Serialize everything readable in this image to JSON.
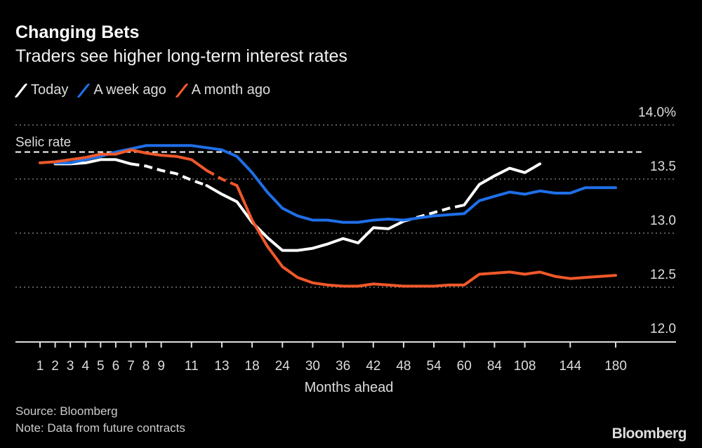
{
  "title": "Changing Bets",
  "subtitle": "Traders see higher long-term interest rates",
  "source": "Source: Bloomberg",
  "note": "Note: Data from future contracts",
  "logo": "Bloomberg",
  "colors": {
    "today": "#ffffff",
    "week": "#1f6fe8",
    "month": "#f0582a",
    "grid": "#777777"
  },
  "chart_data": {
    "type": "line",
    "title": "Changing Bets",
    "xlabel": "Months ahead",
    "ylabel": "",
    "y_unit": "%",
    "ylim": [
      12.0,
      14.0
    ],
    "yticks": [
      "12.0",
      "12.5",
      "13.0",
      "13.5",
      "14.0%"
    ],
    "ytick_values": [
      12.0,
      12.5,
      13.0,
      13.5,
      14.0
    ],
    "grid": true,
    "legend_position": "top-left",
    "x": [
      1,
      2,
      3,
      4,
      5,
      6,
      7,
      8,
      9,
      10,
      11,
      12,
      13,
      15,
      18,
      21,
      24,
      27,
      30,
      33,
      36,
      39,
      42,
      45,
      48,
      51,
      54,
      57,
      60,
      72,
      84,
      96,
      108,
      120,
      132,
      144,
      156,
      168,
      180
    ],
    "xticks": [
      "1",
      "2",
      "3",
      "4",
      "5",
      "6",
      "7",
      "8",
      "9",
      "11",
      "13",
      "18",
      "24",
      "30",
      "36",
      "42",
      "48",
      "54",
      "60",
      "84",
      "108",
      "144",
      "180"
    ],
    "reference_line": {
      "label": "Selic rate",
      "value": 13.75
    },
    "series": [
      {
        "name": "Today",
        "color_key": "today",
        "values": [
          null,
          13.64,
          13.64,
          13.65,
          13.68,
          13.68,
          13.64,
          13.62,
          13.58,
          13.55,
          13.49,
          13.44,
          13.36,
          13.29,
          13.1,
          12.96,
          12.84,
          12.84,
          12.86,
          12.9,
          12.95,
          12.91,
          13.05,
          13.04,
          13.11,
          13.15,
          13.19,
          13.23,
          13.26,
          13.45,
          13.53,
          13.6,
          13.56,
          13.64,
          null,
          null,
          null,
          null,
          null
        ],
        "dashed_ranges": [
          [
            7,
            12
          ],
          [
            48,
            60
          ]
        ]
      },
      {
        "name": "A week ago",
        "color_key": "week",
        "values": [
          null,
          13.65,
          13.65,
          13.68,
          13.71,
          13.75,
          13.78,
          13.81,
          13.81,
          13.81,
          13.81,
          13.79,
          13.77,
          13.71,
          13.56,
          13.38,
          13.23,
          13.16,
          13.12,
          13.12,
          13.1,
          13.1,
          13.12,
          13.13,
          13.12,
          13.14,
          13.16,
          13.17,
          13.18,
          13.3,
          13.34,
          13.38,
          13.36,
          13.39,
          13.37,
          13.37,
          13.42,
          13.42,
          13.42
        ],
        "dashed_ranges": []
      },
      {
        "name": "A month ago",
        "color_key": "month",
        "values": [
          13.65,
          13.66,
          13.68,
          13.7,
          13.73,
          13.73,
          13.77,
          13.74,
          13.72,
          13.71,
          13.68,
          13.58,
          13.5,
          13.44,
          13.12,
          12.88,
          12.69,
          12.59,
          12.54,
          12.52,
          12.51,
          12.51,
          12.53,
          12.52,
          12.51,
          12.51,
          12.51,
          12.52,
          12.52,
          12.62,
          12.63,
          12.64,
          12.62,
          12.64,
          12.6,
          12.58,
          12.59,
          12.6,
          12.61
        ],
        "dashed_ranges": [
          [
            12,
            15
          ]
        ]
      }
    ]
  }
}
